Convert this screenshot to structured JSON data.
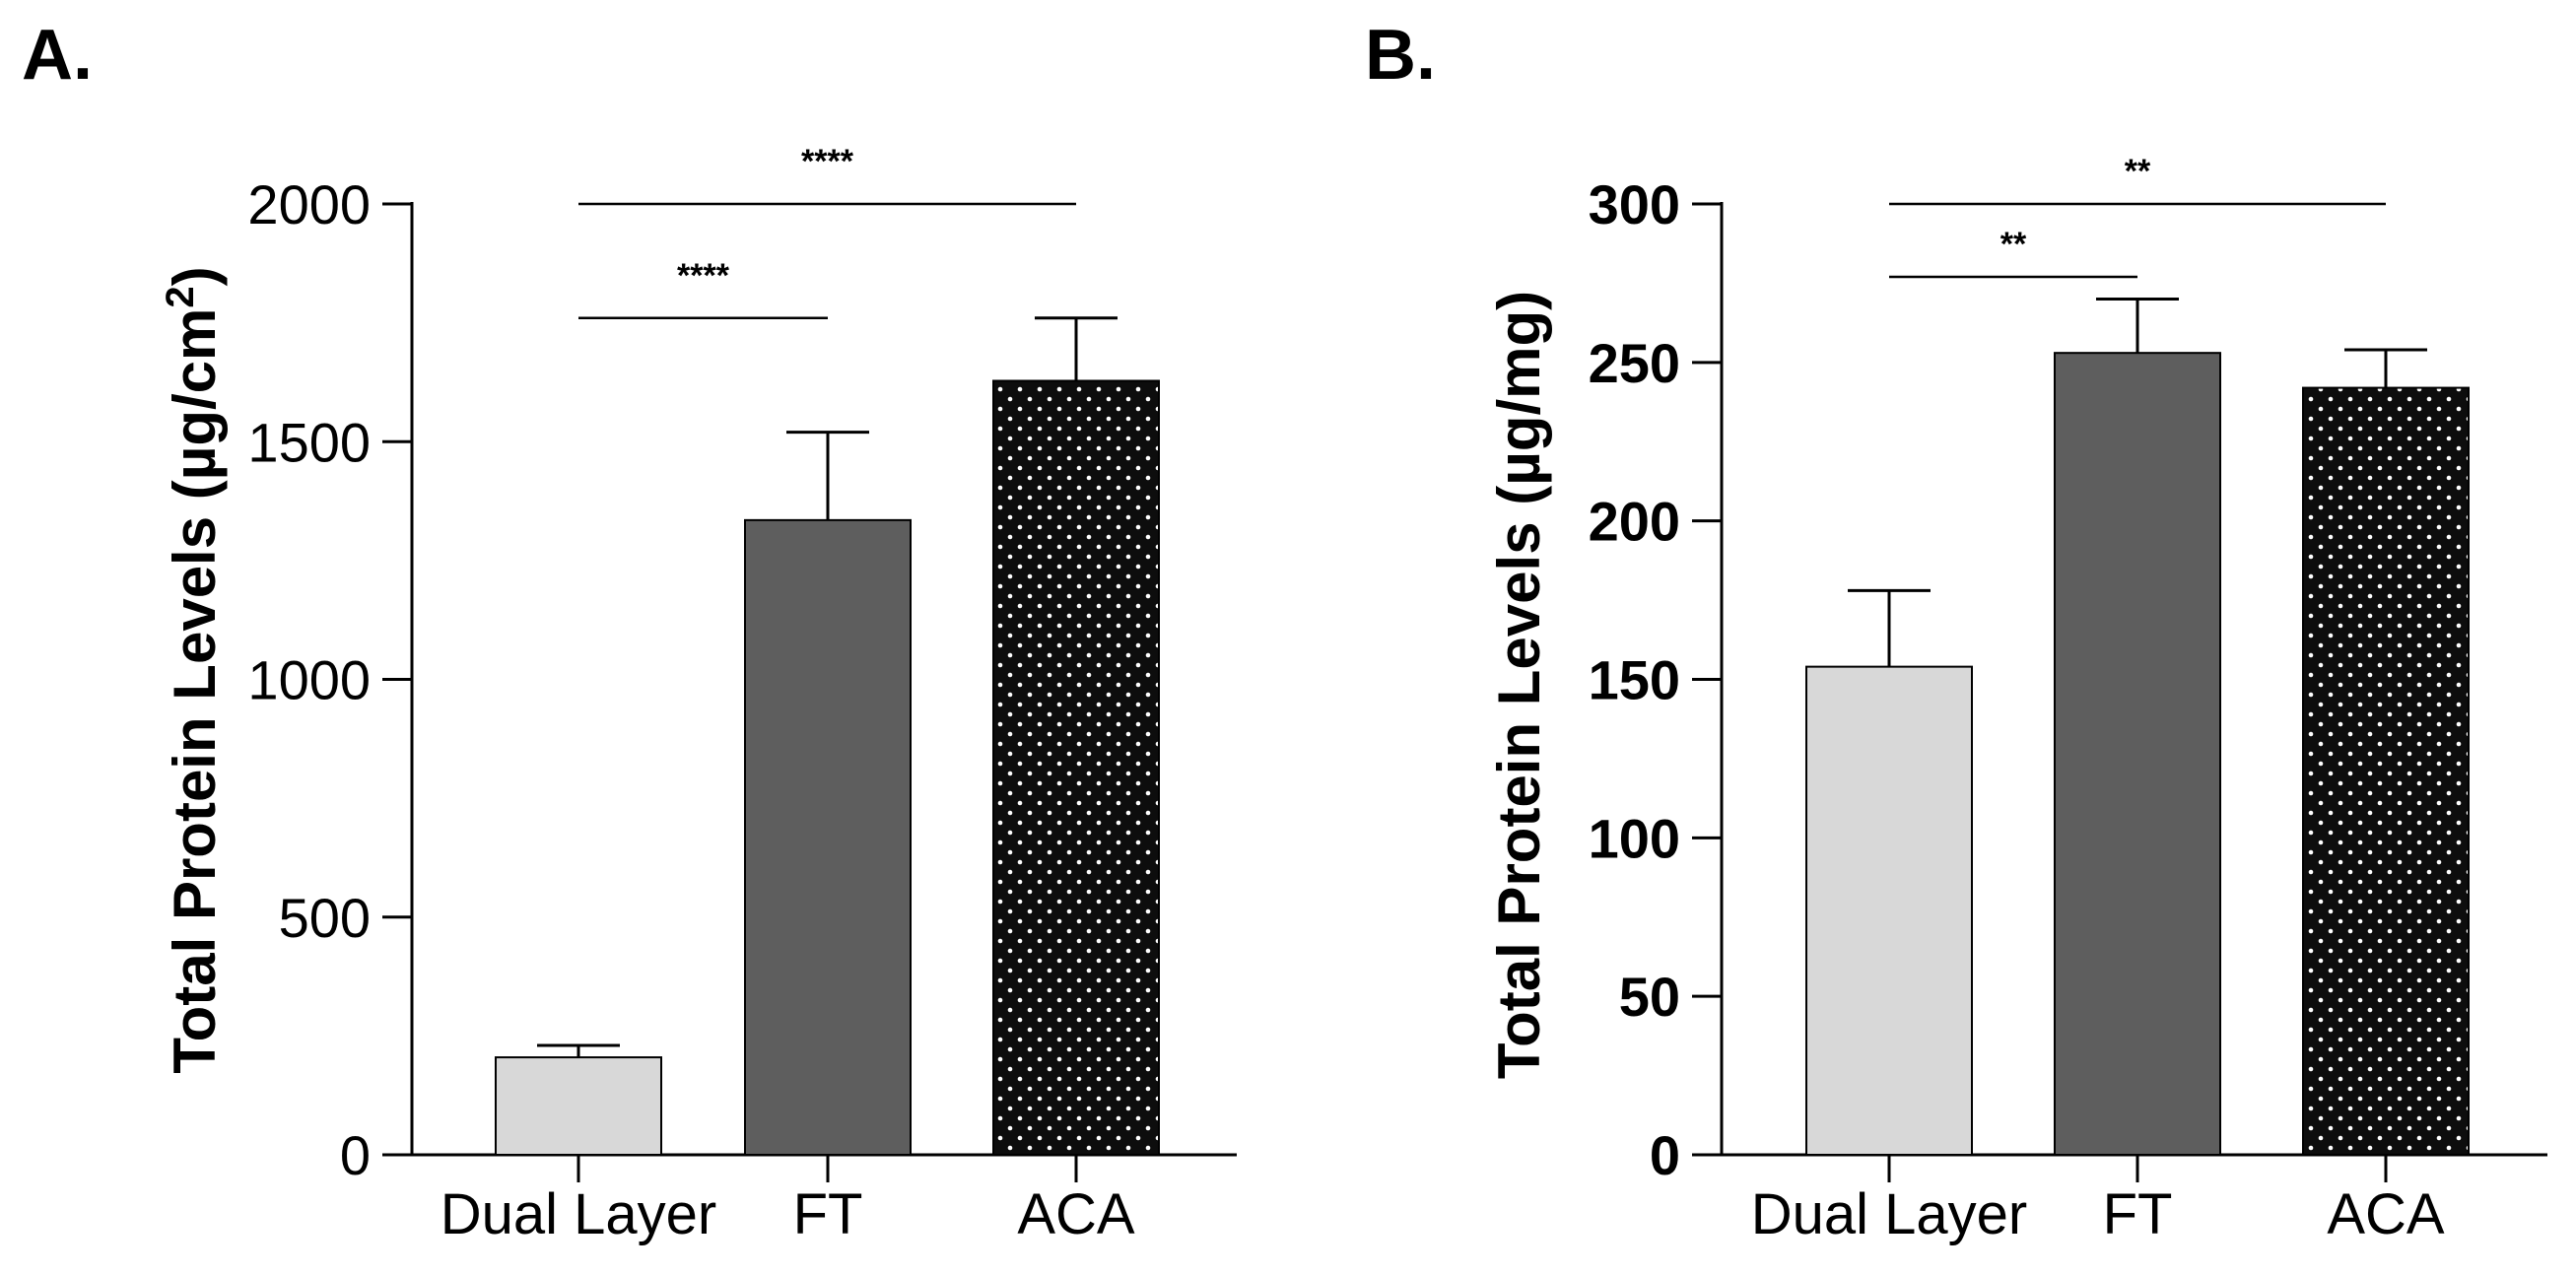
{
  "chart_data": [
    {
      "type": "bar",
      "panel_label": "A.",
      "ylabel_main": "Total Protein Levels (µg/cm",
      "ylabel_sup": "2",
      "ylabel_tail": ")",
      "xlabel": "",
      "categories": [
        "Dual Layer",
        "FT",
        "ACA"
      ],
      "values": [
        205,
        1335,
        1628
      ],
      "errors": [
        25,
        185,
        132
      ],
      "fills": [
        "#d8d8d8",
        "#5e5e5e",
        "#0d0d0d"
      ],
      "patterns": [
        "solid",
        "solid",
        "dots"
      ],
      "ylim": [
        0,
        2000
      ],
      "yticks": [
        0,
        500,
        1000,
        1500,
        2000
      ],
      "tick_labels": [
        "0",
        "500",
        "1000",
        "1500",
        "2000"
      ],
      "significance": [
        {
          "from": 0,
          "to": 1,
          "label": "****",
          "level": 1760
        },
        {
          "from": 0,
          "to": 2,
          "label": "****",
          "level": 2000
        }
      ]
    },
    {
      "type": "bar",
      "panel_label": "B.",
      "ylabel_main": "Total Protein Levels (µg/mg)",
      "ylabel_sup": "",
      "ylabel_tail": "",
      "xlabel": "",
      "categories": [
        "Dual Layer",
        "FT",
        "ACA"
      ],
      "values": [
        154,
        253,
        242
      ],
      "errors": [
        24,
        17,
        12
      ],
      "fills": [
        "#d8d8d8",
        "#5e5e5e",
        "#0d0d0d"
      ],
      "patterns": [
        "solid",
        "solid",
        "dots"
      ],
      "ylim": [
        0,
        300
      ],
      "yticks": [
        0,
        50,
        100,
        150,
        200,
        250,
        300
      ],
      "tick_labels": [
        "0",
        "50",
        "100",
        "150",
        "200",
        "250",
        "300"
      ],
      "significance": [
        {
          "from": 0,
          "to": 1,
          "label": "**",
          "level": 277
        },
        {
          "from": 0,
          "to": 2,
          "label": "**",
          "level": 300
        }
      ]
    }
  ]
}
